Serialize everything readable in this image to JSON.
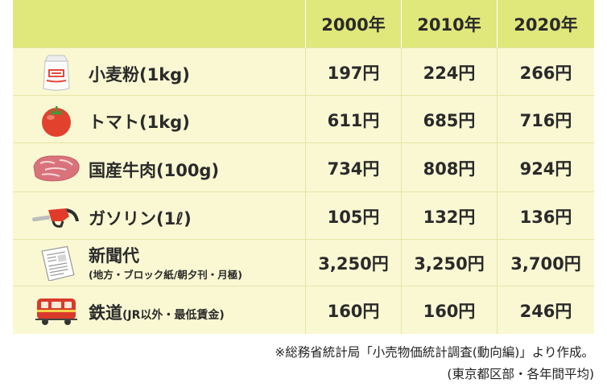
{
  "header": {
    "years": [
      "2000年",
      "2010年",
      "2020年"
    ]
  },
  "rows": [
    {
      "icon": "flour-bag-icon",
      "label": "小麦粉(1kg)",
      "values": [
        "197円",
        "224円",
        "266円"
      ]
    },
    {
      "icon": "tomato-icon",
      "label": "トマト(1kg)",
      "values": [
        "611円",
        "685円",
        "716円"
      ]
    },
    {
      "icon": "beef-steak-icon",
      "label": "国産牛肉(100g)",
      "values": [
        "734円",
        "808円",
        "924円"
      ]
    },
    {
      "icon": "fuel-nozzle-icon",
      "label": "ガソリン(1ℓ)",
      "values": [
        "105円",
        "132円",
        "136円"
      ]
    },
    {
      "icon": "newspaper-icon",
      "label": "新聞代",
      "sublabel": "(地方・ブロック紙/朝夕刊・月極)",
      "values": [
        "3,250円",
        "3,250円",
        "3,700円"
      ]
    },
    {
      "icon": "train-icon",
      "label": "鉄道",
      "label_suffix": "(JR以外・最低賃金)",
      "values": [
        "160円",
        "160円",
        "246円"
      ]
    }
  ],
  "notes": {
    "source": "※総務省統計局「小売物価統計調査(動向編)」より作成。",
    "scope": "(東京都区部・各年間平均)"
  },
  "colors": {
    "header_bg": "#e0e77b",
    "row_bg": "#f9f8d3",
    "grid": "#e5e5a5"
  }
}
